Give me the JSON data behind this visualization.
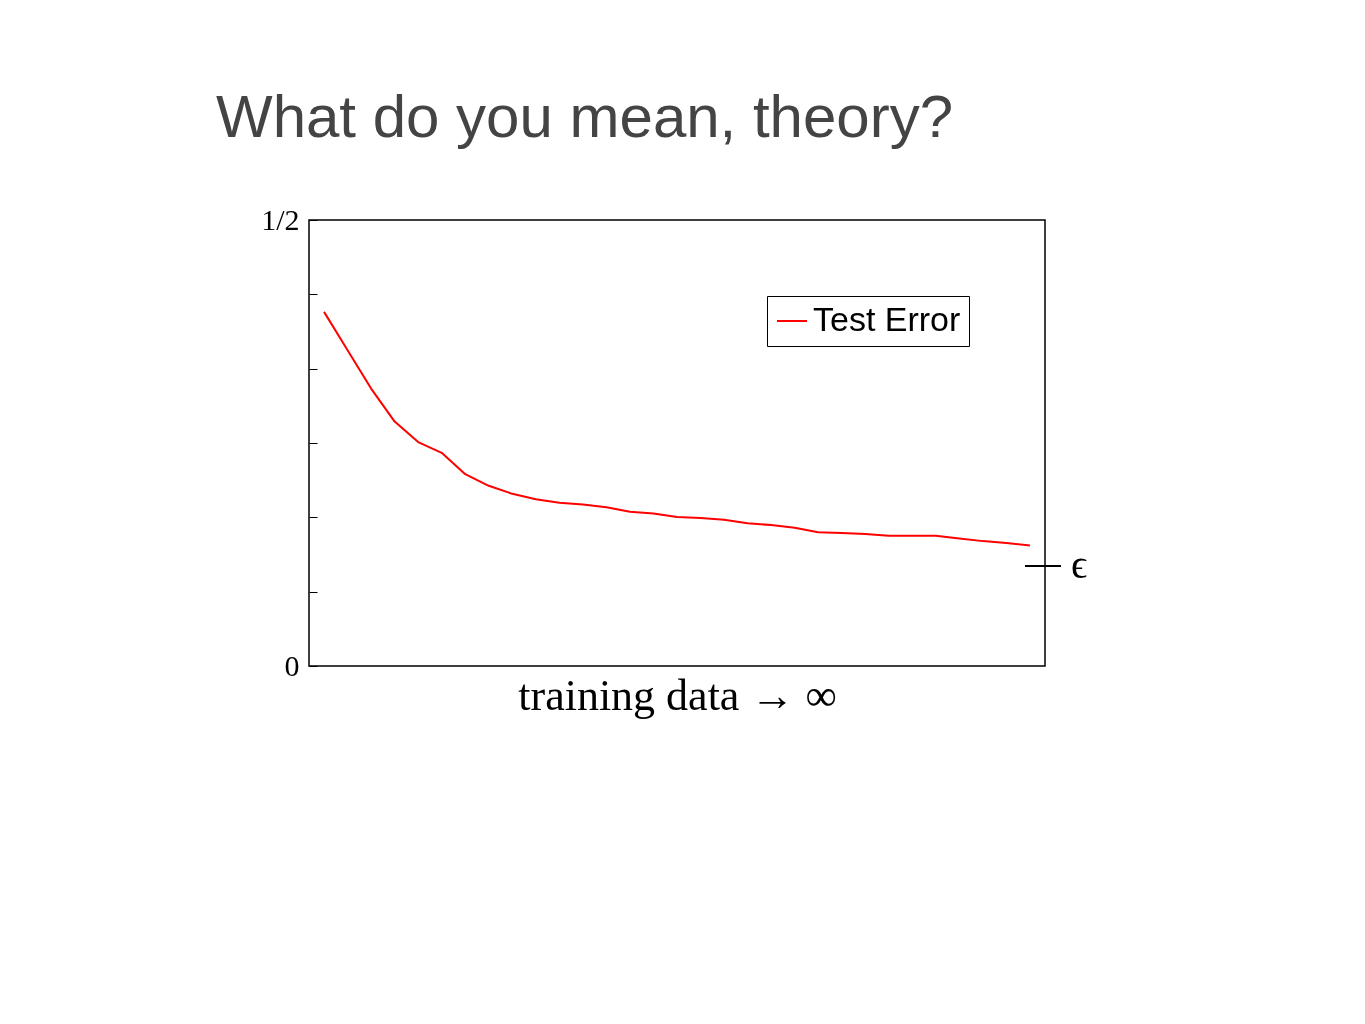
{
  "chart_data": {
    "type": "line",
    "title": "What do you mean, theory?",
    "xlabel": "training data → ∞",
    "categories": [
      null,
      null,
      null,
      null,
      null,
      null,
      null,
      null,
      null,
      null,
      null,
      null,
      null,
      null,
      null,
      null,
      null,
      null,
      null,
      null,
      null,
      null,
      null,
      null,
      null,
      null,
      null,
      null,
      null,
      null,
      null
    ],
    "series": [
      {
        "name": "Test Error",
        "color": "#ff0000",
        "values": [
          0.397,
          0.354,
          0.311,
          0.274,
          0.251,
          0.239,
          0.215,
          0.202,
          0.193,
          0.187,
          0.183,
          0.181,
          0.178,
          0.173,
          0.171,
          0.167,
          0.166,
          0.164,
          0.16,
          0.158,
          0.155,
          0.15,
          0.149,
          0.148,
          0.146,
          0.146,
          0.146,
          0.143,
          0.14,
          0.138,
          0.135
        ]
      }
    ],
    "ylim": [
      0,
      0.5
    ],
    "yticks": [
      {
        "value": 0,
        "label": "0"
      },
      {
        "value": 0.0833,
        "label": null
      },
      {
        "value": 0.1667,
        "label": null
      },
      {
        "value": 0.25,
        "label": null
      },
      {
        "value": 0.3333,
        "label": null
      },
      {
        "value": 0.4167,
        "label": null
      },
      {
        "value": 0.5,
        "label": "1/2"
      }
    ],
    "ref_lines": [
      {
        "axis": "y",
        "value": 0.112,
        "label": "ϵ",
        "color": "#000000"
      }
    ],
    "legend": "top right",
    "grid": false
  }
}
